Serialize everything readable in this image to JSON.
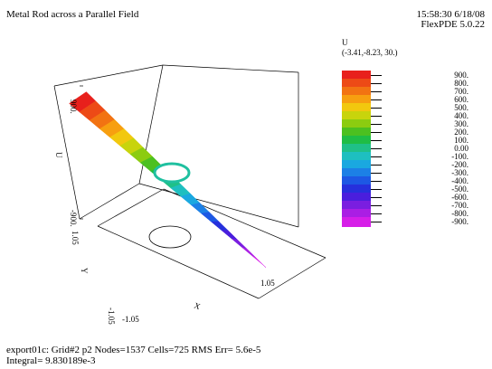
{
  "header": {
    "title": "Metal Rod across a Parallel Field",
    "timestamp": "15:58:30 6/18/08",
    "software": "FlexPDE 5.0.22"
  },
  "legend": {
    "variable": "U",
    "viewpoint": "(-3.41,-8.23, 30.)",
    "levels": [
      {
        "label": "900.",
        "color": "#e8201c"
      },
      {
        "label": "800.",
        "color": "#ed4a16"
      },
      {
        "label": "700.",
        "color": "#f27312"
      },
      {
        "label": "600.",
        "color": "#f79f10"
      },
      {
        "label": "500.",
        "color": "#f2c80e"
      },
      {
        "label": "400.",
        "color": "#c8d40c"
      },
      {
        "label": "300.",
        "color": "#8ccc10"
      },
      {
        "label": "200.",
        "color": "#4cc020"
      },
      {
        "label": "100.",
        "color": "#1fbd45"
      },
      {
        "label": "0.00",
        "color": "#1fc088"
      },
      {
        "label": "-100.",
        "color": "#1ebfc0"
      },
      {
        "label": "-200.",
        "color": "#1aa8e0"
      },
      {
        "label": "-300.",
        "color": "#1c80e6"
      },
      {
        "label": "-400.",
        "color": "#1d58e4"
      },
      {
        "label": "-500.",
        "color": "#2630dc"
      },
      {
        "label": "-600.",
        "color": "#4a1edd"
      },
      {
        "label": "-700.",
        "color": "#7a1ee0"
      },
      {
        "label": "-800.",
        "color": "#aa1ee4"
      },
      {
        "label": "-900.",
        "color": "#d61ee8"
      }
    ]
  },
  "footer": {
    "line1": "export01c:  Grid#2  p2  Nodes=1537 Cells=725 RMS Err= 5.6e-5",
    "line2": "Integral=  9.830189e-3"
  },
  "chart_data": {
    "type": "surface3d",
    "variable": "U",
    "zlabel": "U",
    "xlabel": "X",
    "ylabel": "Y",
    "zlim": [
      -900,
      900
    ],
    "xlim": [
      -1.05,
      1.05
    ],
    "ylim": [
      -1.05,
      1.05
    ],
    "z_tick_labels": [
      "900.",
      "-900."
    ],
    "x_tick_labels": [
      "-1.05",
      "1.05"
    ],
    "y_tick_labels": [
      "-1.05",
      "1.05"
    ],
    "surface_x": [
      -1.05,
      -0.7,
      -0.35,
      0.0,
      0.35,
      0.7,
      1.05
    ],
    "surface_u": [
      900,
      600,
      300,
      0,
      -300,
      -600,
      -900
    ]
  }
}
